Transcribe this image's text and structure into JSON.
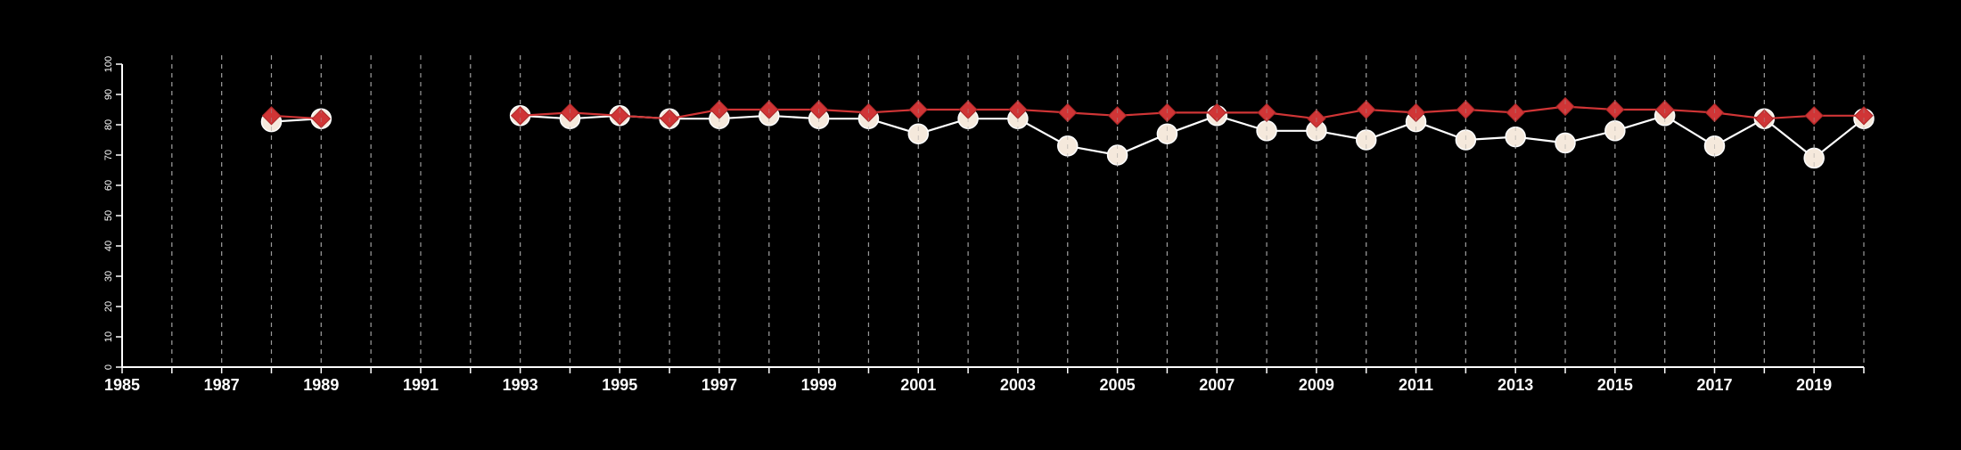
{
  "chart_data": {
    "type": "line",
    "title": "",
    "xlabel": "",
    "ylabel": "",
    "xlim": [
      1985,
      2020
    ],
    "ylim": [
      0,
      100
    ],
    "x_tick_labels": [
      "1985",
      "1987",
      "1989",
      "1991",
      "1993",
      "1995",
      "1997",
      "1999",
      "2001",
      "2003",
      "2005",
      "2007",
      "2009",
      "2011",
      "2013",
      "2015",
      "2017",
      "2019"
    ],
    "y_tick_labels": [
      "0",
      "10",
      "20",
      "30",
      "40",
      "50",
      "60",
      "70",
      "80",
      "90",
      "100"
    ],
    "grid": "vertical dashed lines at each year",
    "legend": "none",
    "series": [
      {
        "marker": "circle",
        "color": "#f5e9dc",
        "line_color": "#ffffff",
        "segments": [
          [
            [
              1988,
              81
            ],
            [
              1989,
              82
            ]
          ],
          [
            [
              1993,
              83
            ],
            [
              1994,
              82
            ],
            [
              1995,
              83
            ],
            [
              1996,
              82
            ],
            [
              1997,
              82
            ],
            [
              1998,
              83
            ],
            [
              1999,
              82
            ],
            [
              2000,
              82
            ],
            [
              2001,
              77
            ],
            [
              2002,
              82
            ],
            [
              2003,
              82
            ],
            [
              2004,
              73
            ],
            [
              2005,
              70
            ],
            [
              2006,
              77
            ],
            [
              2007,
              83
            ],
            [
              2008,
              78
            ],
            [
              2009,
              78
            ],
            [
              2010,
              75
            ],
            [
              2011,
              81
            ],
            [
              2012,
              75
            ],
            [
              2013,
              76
            ],
            [
              2014,
              74
            ],
            [
              2015,
              78
            ],
            [
              2016,
              83
            ],
            [
              2017,
              73
            ],
            [
              2018,
              82
            ],
            [
              2019,
              69
            ],
            [
              2020,
              82
            ]
          ]
        ]
      },
      {
        "marker": "diamond",
        "color": "#d03536",
        "line_color": "#d03536",
        "segments": [
          [
            [
              1988,
              83
            ],
            [
              1989,
              82
            ]
          ],
          [
            [
              1993,
              83
            ],
            [
              1994,
              84
            ],
            [
              1995,
              83
            ],
            [
              1996,
              82
            ],
            [
              1997,
              85
            ],
            [
              1998,
              85
            ],
            [
              1999,
              85
            ],
            [
              2000,
              84
            ],
            [
              2001,
              85
            ],
            [
              2002,
              85
            ],
            [
              2003,
              85
            ],
            [
              2004,
              84
            ],
            [
              2005,
              83
            ],
            [
              2006,
              84
            ],
            [
              2007,
              84
            ],
            [
              2008,
              84
            ],
            [
              2009,
              82
            ],
            [
              2010,
              85
            ],
            [
              2011,
              84
            ],
            [
              2012,
              85
            ],
            [
              2013,
              84
            ],
            [
              2014,
              86
            ],
            [
              2015,
              85
            ],
            [
              2016,
              85
            ],
            [
              2017,
              84
            ],
            [
              2018,
              82
            ],
            [
              2019,
              83
            ],
            [
              2020,
              83
            ]
          ]
        ]
      }
    ]
  }
}
